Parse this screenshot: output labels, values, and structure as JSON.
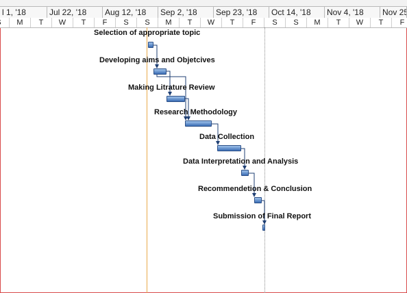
{
  "timescale": {
    "major": [
      "l 1, '18",
      "Jul 22, '18",
      "Aug 12, '18",
      "Sep 2, '18",
      "Sep 23, '18",
      "Oct 14, '18",
      "Nov 4, '18",
      "Nov 25"
    ],
    "minor": [
      "S",
      "M",
      "T",
      "W",
      "T",
      "F",
      "S",
      "S",
      "M",
      "T",
      "W",
      "T",
      "F",
      "S",
      "S",
      "M",
      "T",
      "W",
      "T",
      "F"
    ]
  },
  "tasks": [
    {
      "name": "Selection of appropriate topic"
    },
    {
      "name": "Developing aims and Objetcives"
    },
    {
      "name": "Making Litrature Review"
    },
    {
      "name": "Research Methodology"
    },
    {
      "name": "Data Collection"
    },
    {
      "name": "Data Interpretation and Analysis"
    },
    {
      "name": "Recommendetion & Conclusion"
    },
    {
      "name": "Submission of Final Report"
    }
  ],
  "colors": {
    "bar": "#4a7cc4",
    "today_line": "#e8a94a",
    "border": "#d84a4a"
  }
}
